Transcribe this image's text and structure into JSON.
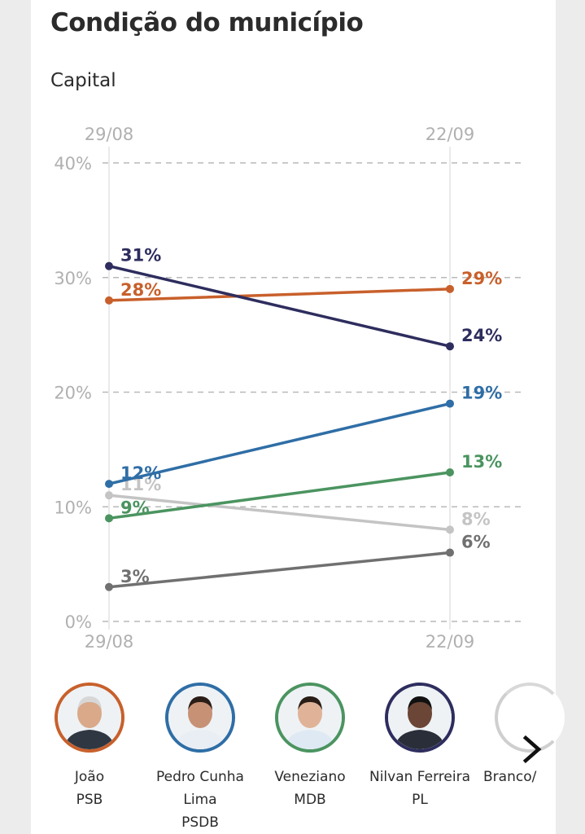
{
  "header": {
    "title": "Condição do município",
    "subtitle": "Capital"
  },
  "chart_data": {
    "type": "line",
    "x": [
      "29/08",
      "22/09"
    ],
    "ylim": [
      0,
      40
    ],
    "yticks": [
      "0%",
      "10%",
      "20%",
      "30%",
      "40%"
    ],
    "ytick_values": [
      0,
      10,
      20,
      30,
      40
    ],
    "grid": true,
    "series": [
      {
        "key": "joao",
        "values": [
          28,
          29
        ],
        "labels": [
          "28%",
          "29%"
        ],
        "color": "#c8602b"
      },
      {
        "key": "nilvan",
        "values": [
          31,
          24
        ],
        "labels": [
          "31%",
          "24%"
        ],
        "color": "#2e2d5e"
      },
      {
        "key": "pedro",
        "values": [
          12,
          19
        ],
        "labels": [
          "12%",
          "19%"
        ],
        "color": "#2f6ea6"
      },
      {
        "key": "veneziano",
        "values": [
          9,
          13
        ],
        "labels": [
          "9%",
          "13%"
        ],
        "color": "#4b9460"
      },
      {
        "key": "branco",
        "values": [
          11,
          8
        ],
        "labels": [
          "11%",
          "8%"
        ],
        "color": "#c4c4c4"
      },
      {
        "key": "nao_sabe",
        "values": [
          3,
          6
        ],
        "labels": [
          "3%",
          "6%"
        ],
        "color": "#707070"
      }
    ]
  },
  "candidates": [
    {
      "name": "João",
      "party": "PSB",
      "color": "#c8602b"
    },
    {
      "name": "Pedro Cunha Lima",
      "party": "PSDB",
      "color": "#2f6ea6"
    },
    {
      "name": "Veneziano",
      "party": "MDB",
      "color": "#4b9460"
    },
    {
      "name": "Nilvan Ferreira",
      "party": "PL",
      "color": "#2e2d5e"
    },
    {
      "name": "Branco/",
      "party": "",
      "color": "#c4c4c4"
    }
  ],
  "icons": {
    "next": "chevron-right-icon"
  }
}
